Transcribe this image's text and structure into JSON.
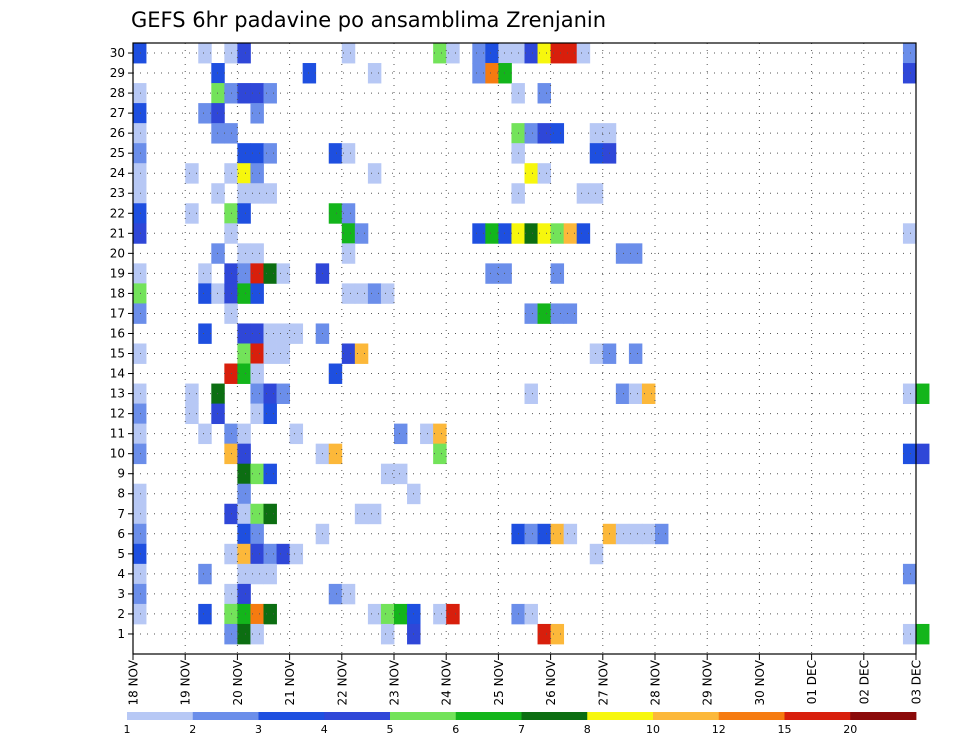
{
  "chart_data": {
    "type": "heatmap",
    "title": "GEFS 6hr padavine po ansamblima Zrenjanin",
    "xlabel": "",
    "ylabel": "",
    "x_tick_labels": [
      "18 NOV",
      "19 NOV",
      "20 NOV",
      "21 NOV",
      "22 NOV",
      "23 NOV",
      "24 NOV",
      "25 NOV",
      "26 NOV",
      "27 NOV",
      "28 NOV",
      "29 NOV",
      "30 NOV",
      "01 DEC",
      "02 DEC",
      "03 DEC"
    ],
    "y_tick_labels": [
      "1",
      "2",
      "3",
      "4",
      "5",
      "6",
      "7",
      "8",
      "9",
      "10",
      "11",
      "12",
      "13",
      "14",
      "15",
      "16",
      "17",
      "18",
      "19",
      "20",
      "21",
      "22",
      "23",
      "24",
      "25",
      "26",
      "27",
      "28",
      "29",
      "30"
    ],
    "x_range_steps": [
      0,
      60
    ],
    "y_range": [
      0,
      30
    ],
    "grid": "dotted",
    "colorbar": {
      "position": "bottom",
      "labels": [
        "1",
        "2",
        "3",
        "4",
        "5",
        "6",
        "7",
        "8",
        "10",
        "12",
        "15",
        "20"
      ],
      "colors": [
        "#b7c8f5",
        "#6b8eea",
        "#1e4fe0",
        "#2f47d8",
        "#73e35a",
        "#13b51b",
        "#0c6e12",
        "#f7f70d",
        "#fcb83a",
        "#f67b10",
        "#d81f0c",
        "#8b0a0a"
      ]
    },
    "cells": [
      [
        0,
        30,
        3
      ],
      [
        5,
        30,
        1
      ],
      [
        7,
        30,
        1
      ],
      [
        8,
        30,
        4
      ],
      [
        16,
        30,
        1
      ],
      [
        23,
        30,
        5
      ],
      [
        24,
        30,
        1
      ],
      [
        26,
        30,
        2
      ],
      [
        27,
        30,
        3
      ],
      [
        28,
        30,
        1
      ],
      [
        29,
        30,
        1
      ],
      [
        30,
        30,
        4
      ],
      [
        31,
        30,
        8
      ],
      [
        32,
        30,
        11
      ],
      [
        33,
        30,
        11
      ],
      [
        34,
        30,
        1
      ],
      [
        59,
        30,
        2
      ],
      [
        6,
        29,
        3
      ],
      [
        13,
        29,
        3
      ],
      [
        18,
        29,
        1
      ],
      [
        26,
        29,
        2
      ],
      [
        27,
        29,
        10
      ],
      [
        28,
        29,
        6
      ],
      [
        59,
        29,
        4
      ],
      [
        0,
        28,
        1
      ],
      [
        6,
        28,
        5
      ],
      [
        7,
        28,
        2
      ],
      [
        8,
        28,
        4
      ],
      [
        9,
        28,
        4
      ],
      [
        10,
        28,
        2
      ],
      [
        29,
        28,
        1
      ],
      [
        31,
        28,
        2
      ],
      [
        0,
        27,
        3
      ],
      [
        5,
        27,
        2
      ],
      [
        6,
        27,
        4
      ],
      [
        9,
        27,
        2
      ],
      [
        0,
        26,
        1
      ],
      [
        6,
        26,
        2
      ],
      [
        7,
        26,
        2
      ],
      [
        29,
        26,
        5
      ],
      [
        30,
        26,
        2
      ],
      [
        31,
        26,
        4
      ],
      [
        32,
        26,
        3
      ],
      [
        35,
        26,
        1
      ],
      [
        36,
        26,
        1
      ],
      [
        0,
        25,
        2
      ],
      [
        8,
        25,
        3
      ],
      [
        9,
        25,
        3
      ],
      [
        10,
        25,
        2
      ],
      [
        15,
        25,
        3
      ],
      [
        16,
        25,
        1
      ],
      [
        29,
        25,
        1
      ],
      [
        35,
        25,
        3
      ],
      [
        36,
        25,
        4
      ],
      [
        0,
        24,
        1
      ],
      [
        4,
        24,
        1
      ],
      [
        7,
        24,
        1
      ],
      [
        8,
        24,
        8
      ],
      [
        9,
        24,
        2
      ],
      [
        18,
        24,
        1
      ],
      [
        30,
        24,
        8
      ],
      [
        31,
        24,
        1
      ],
      [
        0,
        23,
        1
      ],
      [
        6,
        23,
        1
      ],
      [
        8,
        23,
        1
      ],
      [
        9,
        23,
        1
      ],
      [
        10,
        23,
        1
      ],
      [
        29,
        23,
        1
      ],
      [
        34,
        23,
        1
      ],
      [
        35,
        23,
        1
      ],
      [
        0,
        22,
        3
      ],
      [
        4,
        22,
        1
      ],
      [
        7,
        22,
        5
      ],
      [
        8,
        22,
        3
      ],
      [
        15,
        22,
        6
      ],
      [
        16,
        22,
        2
      ],
      [
        0,
        21,
        4
      ],
      [
        7,
        21,
        1
      ],
      [
        16,
        21,
        6
      ],
      [
        17,
        21,
        2
      ],
      [
        26,
        21,
        3
      ],
      [
        27,
        21,
        6
      ],
      [
        28,
        21,
        3
      ],
      [
        29,
        21,
        8
      ],
      [
        30,
        21,
        7
      ],
      [
        31,
        21,
        8
      ],
      [
        32,
        21,
        5
      ],
      [
        33,
        21,
        9
      ],
      [
        34,
        21,
        3
      ],
      [
        59,
        21,
        1
      ],
      [
        6,
        20,
        2
      ],
      [
        8,
        20,
        1
      ],
      [
        9,
        20,
        1
      ],
      [
        16,
        20,
        1
      ],
      [
        37,
        20,
        2
      ],
      [
        38,
        20,
        2
      ],
      [
        0,
        19,
        1
      ],
      [
        5,
        19,
        1
      ],
      [
        7,
        19,
        4
      ],
      [
        8,
        19,
        2
      ],
      [
        9,
        19,
        11
      ],
      [
        10,
        19,
        7
      ],
      [
        11,
        19,
        1
      ],
      [
        14,
        19,
        4
      ],
      [
        27,
        19,
        2
      ],
      [
        28,
        19,
        2
      ],
      [
        32,
        19,
        2
      ],
      [
        0,
        18,
        5
      ],
      [
        5,
        18,
        3
      ],
      [
        6,
        18,
        1
      ],
      [
        7,
        18,
        4
      ],
      [
        8,
        18,
        6
      ],
      [
        9,
        18,
        3
      ],
      [
        16,
        18,
        1
      ],
      [
        17,
        18,
        1
      ],
      [
        18,
        18,
        2
      ],
      [
        19,
        18,
        1
      ],
      [
        0,
        17,
        2
      ],
      [
        7,
        17,
        1
      ],
      [
        30,
        17,
        2
      ],
      [
        31,
        17,
        6
      ],
      [
        32,
        17,
        2
      ],
      [
        33,
        17,
        2
      ],
      [
        5,
        16,
        3
      ],
      [
        8,
        16,
        4
      ],
      [
        9,
        16,
        4
      ],
      [
        10,
        16,
        1
      ],
      [
        11,
        16,
        1
      ],
      [
        12,
        16,
        1
      ],
      [
        14,
        16,
        2
      ],
      [
        0,
        15,
        1
      ],
      [
        8,
        15,
        5
      ],
      [
        9,
        15,
        11
      ],
      [
        10,
        15,
        1
      ],
      [
        11,
        15,
        1
      ],
      [
        16,
        15,
        4
      ],
      [
        17,
        15,
        9
      ],
      [
        35,
        15,
        1
      ],
      [
        36,
        15,
        2
      ],
      [
        38,
        15,
        2
      ],
      [
        7,
        14,
        11
      ],
      [
        8,
        14,
        6
      ],
      [
        9,
        14,
        1
      ],
      [
        15,
        14,
        3
      ],
      [
        0,
        13,
        1
      ],
      [
        4,
        13,
        1
      ],
      [
        6,
        13,
        7
      ],
      [
        9,
        13,
        2
      ],
      [
        10,
        13,
        4
      ],
      [
        11,
        13,
        2
      ],
      [
        30,
        13,
        1
      ],
      [
        37,
        13,
        2
      ],
      [
        38,
        13,
        1
      ],
      [
        39,
        13,
        9
      ],
      [
        59,
        13,
        1
      ],
      [
        60,
        13,
        6
      ],
      [
        0,
        12,
        2
      ],
      [
        4,
        12,
        1
      ],
      [
        6,
        12,
        4
      ],
      [
        9,
        12,
        1
      ],
      [
        10,
        12,
        3
      ],
      [
        0,
        11,
        1
      ],
      [
        5,
        11,
        1
      ],
      [
        7,
        11,
        2
      ],
      [
        8,
        11,
        1
      ],
      [
        12,
        11,
        1
      ],
      [
        20,
        11,
        2
      ],
      [
        22,
        11,
        1
      ],
      [
        23,
        11,
        9
      ],
      [
        0,
        10,
        2
      ],
      [
        7,
        10,
        9
      ],
      [
        8,
        10,
        4
      ],
      [
        14,
        10,
        1
      ],
      [
        15,
        10,
        9
      ],
      [
        23,
        10,
        5
      ],
      [
        59,
        10,
        3
      ],
      [
        60,
        10,
        4
      ],
      [
        8,
        9,
        7
      ],
      [
        9,
        9,
        5
      ],
      [
        10,
        9,
        3
      ],
      [
        19,
        9,
        1
      ],
      [
        20,
        9,
        1
      ],
      [
        0,
        8,
        1
      ],
      [
        8,
        8,
        2
      ],
      [
        21,
        8,
        1
      ],
      [
        0,
        7,
        1
      ],
      [
        7,
        7,
        4
      ],
      [
        8,
        7,
        1
      ],
      [
        9,
        7,
        5
      ],
      [
        10,
        7,
        7
      ],
      [
        17,
        7,
        1
      ],
      [
        18,
        7,
        1
      ],
      [
        0,
        6,
        2
      ],
      [
        8,
        6,
        3
      ],
      [
        9,
        6,
        2
      ],
      [
        14,
        6,
        1
      ],
      [
        29,
        6,
        3
      ],
      [
        30,
        6,
        2
      ],
      [
        31,
        6,
        3
      ],
      [
        32,
        6,
        9
      ],
      [
        33,
        6,
        1
      ],
      [
        36,
        6,
        9
      ],
      [
        37,
        6,
        1
      ],
      [
        38,
        6,
        1
      ],
      [
        39,
        6,
        1
      ],
      [
        40,
        6,
        2
      ],
      [
        0,
        5,
        3
      ],
      [
        7,
        5,
        1
      ],
      [
        8,
        5,
        9
      ],
      [
        9,
        5,
        4
      ],
      [
        10,
        5,
        2
      ],
      [
        11,
        5,
        4
      ],
      [
        12,
        5,
        1
      ],
      [
        35,
        5,
        1
      ],
      [
        0,
        4,
        1
      ],
      [
        5,
        4,
        2
      ],
      [
        8,
        4,
        1
      ],
      [
        9,
        4,
        1
      ],
      [
        10,
        4,
        1
      ],
      [
        59,
        4,
        2
      ],
      [
        0,
        3,
        2
      ],
      [
        7,
        3,
        1
      ],
      [
        8,
        3,
        4
      ],
      [
        15,
        3,
        2
      ],
      [
        16,
        3,
        1
      ],
      [
        0,
        2,
        1
      ],
      [
        5,
        2,
        3
      ],
      [
        7,
        2,
        5
      ],
      [
        8,
        2,
        6
      ],
      [
        9,
        2,
        10
      ],
      [
        10,
        2,
        7
      ],
      [
        18,
        2,
        1
      ],
      [
        19,
        2,
        5
      ],
      [
        20,
        2,
        6
      ],
      [
        21,
        2,
        3
      ],
      [
        23,
        2,
        1
      ],
      [
        24,
        2,
        11
      ],
      [
        29,
        2,
        2
      ],
      [
        30,
        2,
        1
      ],
      [
        7,
        1,
        2
      ],
      [
        8,
        1,
        7
      ],
      [
        9,
        1,
        1
      ],
      [
        19,
        1,
        1
      ],
      [
        21,
        1,
        4
      ],
      [
        31,
        1,
        11
      ],
      [
        32,
        1,
        9
      ],
      [
        59,
        1,
        1
      ],
      [
        60,
        1,
        6
      ]
    ]
  }
}
